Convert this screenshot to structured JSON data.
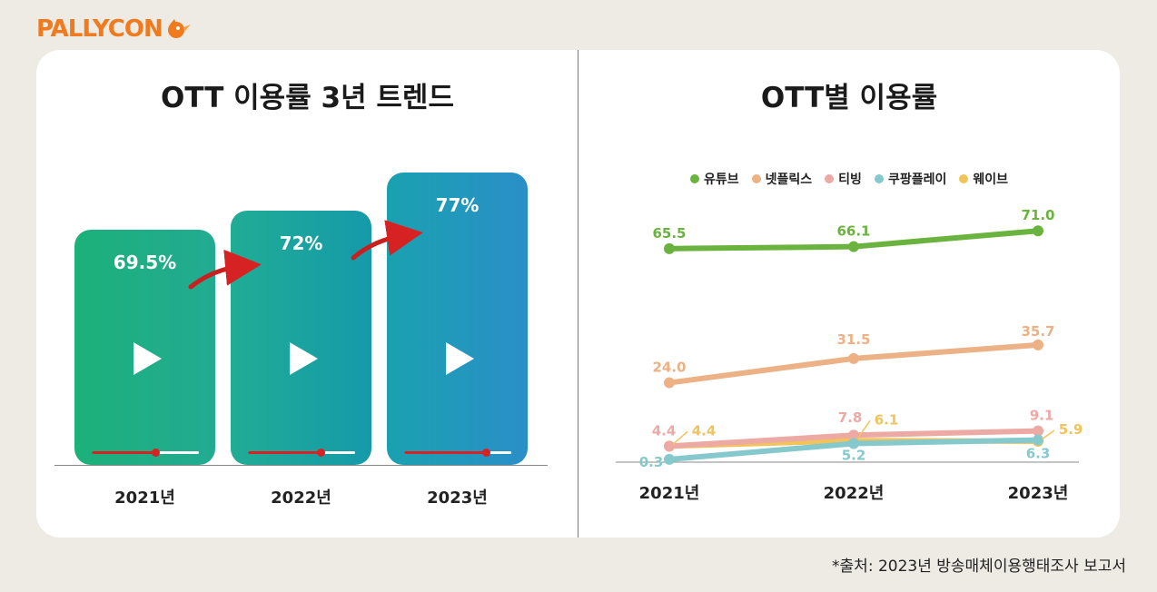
{
  "logo": {
    "text": "PALLYCON"
  },
  "colors": {
    "background": "#eeeae4",
    "panel": "#ffffff",
    "brand": "#f07a1e",
    "progress": "#d62222"
  },
  "left_chart": {
    "title": "OTT 이용률 3년 트렌드"
  },
  "right_chart": {
    "title": "OTT별 이용률"
  },
  "chart_data": [
    {
      "type": "bar",
      "title": "OTT 이용률 3년 트렌드",
      "categories": [
        "2021년",
        "2022년",
        "2023년"
      ],
      "values": [
        69.5,
        72,
        77
      ],
      "value_labels": [
        "69.5%",
        "72%",
        "77%"
      ],
      "bar_gradients": [
        [
          "#1cb07a",
          "#22ab92"
        ],
        [
          "#20ac95",
          "#159aaa"
        ],
        [
          "#1aa1b0",
          "#2a8fc8"
        ]
      ],
      "progress_fraction": [
        0.6,
        0.68,
        0.77
      ],
      "icons": [
        "play-icon",
        "trend-arrow-icon"
      ],
      "grid": false
    },
    {
      "type": "line",
      "title": "OTT별 이용률",
      "categories": [
        "2021년",
        "2022년",
        "2023년"
      ],
      "ylim": [
        0,
        75
      ],
      "legend": "top",
      "grid": false,
      "series": [
        {
          "name": "유튜브",
          "color": "#6ab33e",
          "values": [
            65.5,
            66.1,
            71.0
          ],
          "labels": [
            "65.5",
            "66.1",
            "71.0"
          ]
        },
        {
          "name": "넷플릭스",
          "color": "#ecb185",
          "values": [
            24.0,
            31.5,
            35.7
          ],
          "labels": [
            "24.0",
            "31.5",
            "35.7"
          ]
        },
        {
          "name": "티빙",
          "color": "#eda9a4",
          "values": [
            4.4,
            7.8,
            9.1
          ],
          "labels": [
            "4.4",
            "7.8",
            "9.1"
          ]
        },
        {
          "name": "쿠팡플레이",
          "color": "#86c9cc",
          "values": [
            0.3,
            5.2,
            6.3
          ],
          "labels": [
            "0.3",
            "5.2",
            "6.3"
          ]
        },
        {
          "name": "웨이브",
          "color": "#f2c35a",
          "values": [
            4.4,
            6.1,
            5.9
          ],
          "labels": [
            "4.4",
            "6.1",
            "5.9"
          ]
        }
      ]
    }
  ],
  "footnote": "*출처: 2023년 방송매체이용행태조사 보고서"
}
